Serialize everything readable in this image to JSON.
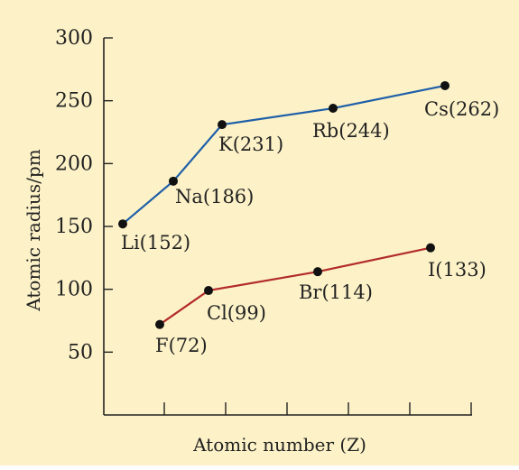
{
  "chart_data": {
    "type": "line",
    "xlabel": "Atomic number (Z)",
    "ylabel": "Atomic radius/pm",
    "ylim": [
      0,
      300
    ],
    "yticks": [
      50,
      100,
      150,
      200,
      250,
      300
    ],
    "x_tick_count": 6,
    "grid": false,
    "background_color": "#fdf2c7",
    "series": [
      {
        "color": "#1f5fa8",
        "points": [
          {
            "label": "Li(152)",
            "value": 152
          },
          {
            "label": "Na(186)",
            "value": 186
          },
          {
            "label": "K(231)",
            "value": 231
          },
          {
            "label": "Rb(244)",
            "value": 244
          },
          {
            "label": "Cs(262)",
            "value": 262
          }
        ]
      },
      {
        "color": "#b22b2b",
        "points": [
          {
            "label": "F(72)",
            "value": 72
          },
          {
            "label": "Cl(99)",
            "value": 99
          },
          {
            "label": "Br(114)",
            "value": 114
          },
          {
            "label": "I(133)",
            "value": 133
          }
        ]
      }
    ]
  }
}
